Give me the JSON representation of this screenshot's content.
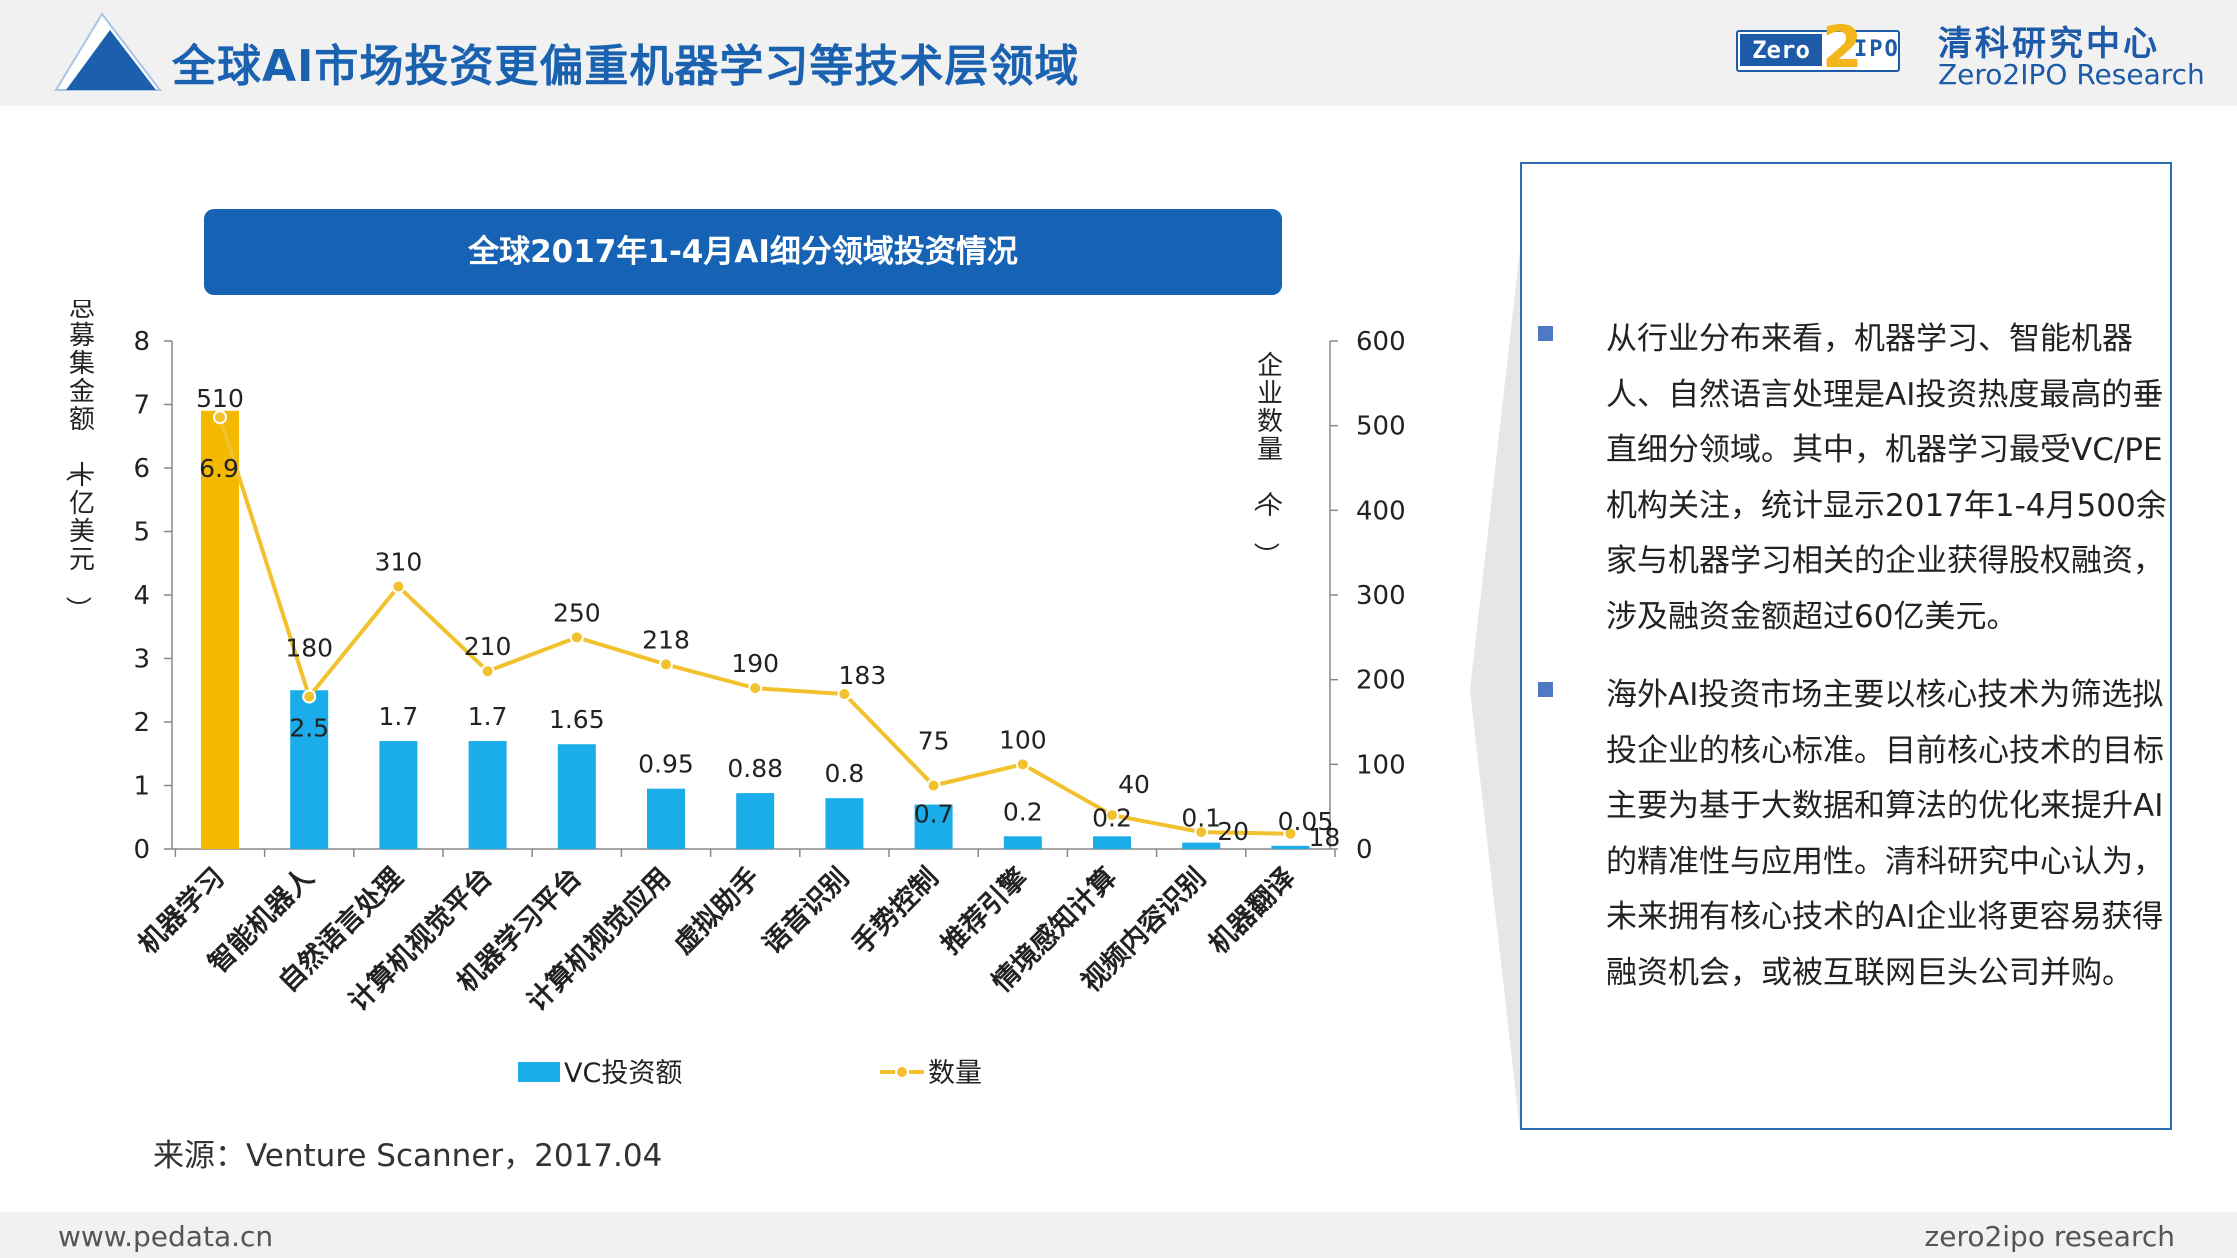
{
  "header": {
    "title": "全球AI市场投资更偏重机器学习等技术层领域",
    "brand_zero": "Zero",
    "brand_two": "2",
    "brand_ipo": "IPO",
    "brand_cn": "清科研究中心",
    "brand_en": "Zero2IPO Research"
  },
  "chart_title": "全球2017年1-4月AI细分领域投资情况",
  "chart_data": {
    "type": "bar",
    "categories": [
      "机器学习",
      "智能机器人",
      "自然语言处理",
      "计算机视觉平台",
      "机器学习平台",
      "计算机视觉应用",
      "虚拟助手",
      "语音识别",
      "手势控制",
      "推荐引擎",
      "情境感知计算",
      "视频内容识别",
      "机器翻译"
    ],
    "series": [
      {
        "name": "VC投资额",
        "type": "bar",
        "axis": "left",
        "values": [
          6.9,
          2.5,
          1.7,
          1.7,
          1.65,
          0.95,
          0.88,
          0.8,
          0.7,
          0.2,
          0.2,
          0.1,
          0.05
        ]
      },
      {
        "name": "数量",
        "type": "line",
        "axis": "right",
        "values": [
          510,
          180,
          310,
          210,
          250,
          218,
          190,
          183,
          75,
          100,
          40,
          20,
          18
        ]
      }
    ],
    "ylabel": "总募集金额（十亿美元）",
    "y2label": "企业数量（个）",
    "ylim": [
      0,
      8
    ],
    "yticks": [
      0,
      1,
      2,
      3,
      4,
      5,
      6,
      7,
      8
    ],
    "y2lim": [
      0,
      600
    ],
    "y2ticks": [
      0,
      100,
      200,
      300,
      400,
      500,
      600
    ],
    "legend_position": "bottom",
    "colors": {
      "bar": "#1aadea",
      "bar_highlight": "#f5b800",
      "line": "#f2c12e"
    }
  },
  "source": "来源：Venture Scanner，2017.04",
  "bullets": [
    "从行业分布来看，机器学习、智能机器人、自然语言处理是AI投资热度最高的垂直细分领域。其中，机器学习最受VC/PE机构关注，统计显示2017年1-4月500余家与机器学习相关的企业获得股权融资，涉及融资金额超过60亿美元。",
    "海外AI投资市场主要以核心技术为筛选拟投企业的核心标准。目前核心技术的目标主要为基于大数据和算法的优化来提升AI的精准性与应用性。清科研究中心认为，未来拥有核心技术的AI企业将更容易获得融资机会，或被互联网巨头公司并购。"
  ],
  "footer": {
    "left": "www.pedata.cn",
    "right": "zero2ipo research"
  }
}
